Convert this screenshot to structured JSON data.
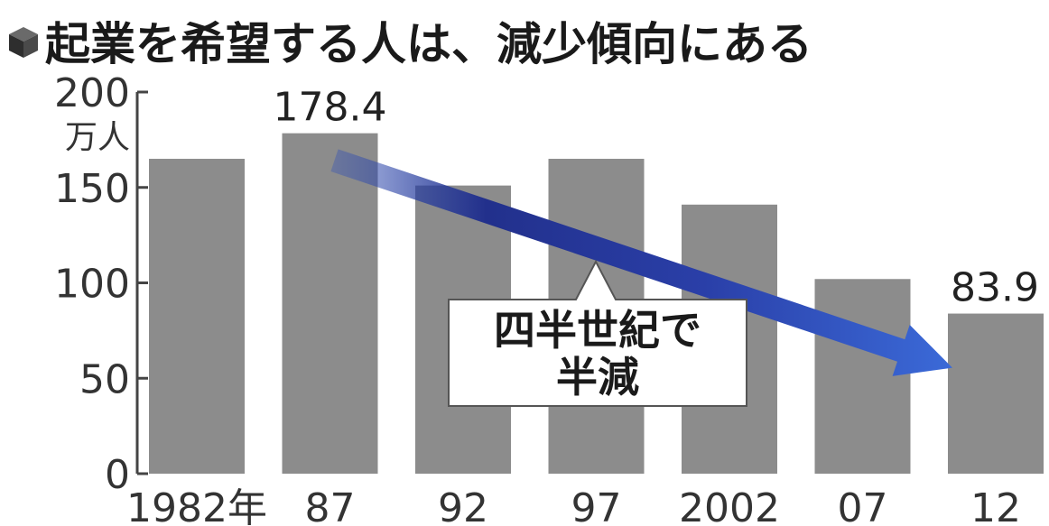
{
  "title": "起業を希望する人は、減少傾向にある",
  "chart_data": {
    "type": "bar",
    "unit": "万人",
    "categories": [
      "1982年",
      "87",
      "92",
      "97",
      "2002",
      "07",
      "12"
    ],
    "values": [
      165,
      178.4,
      151,
      165,
      141,
      102,
      83.9
    ],
    "ylim": [
      0,
      200
    ],
    "yticks": [
      "0",
      "50",
      "100",
      "150",
      "200"
    ],
    "data_labels": {
      "1": "178.4",
      "6": "83.9"
    },
    "callout": {
      "line1": "四半世紀で",
      "line2": "半減"
    },
    "grid": false,
    "bar_color": "#8c8c8c",
    "arrow_color": "#2f4fb8"
  },
  "colors": {
    "axis": "#444444",
    "title_icon": "#3a3a3a"
  }
}
